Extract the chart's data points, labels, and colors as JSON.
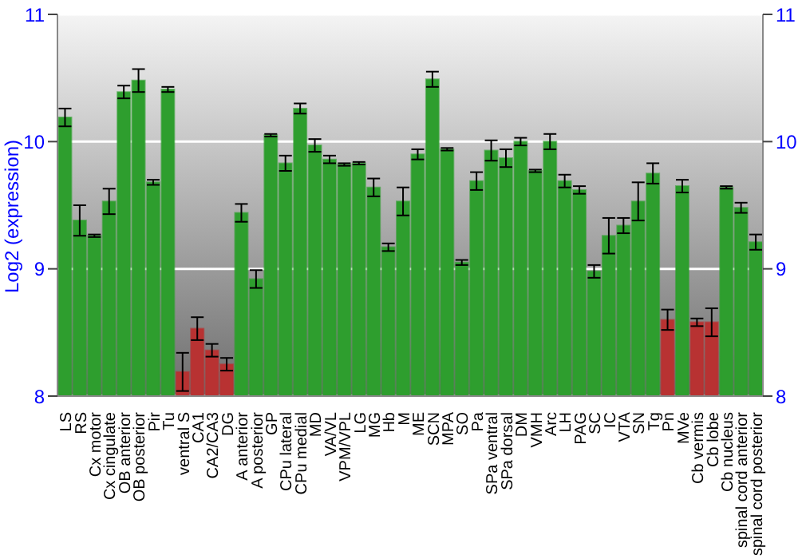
{
  "chart_data": {
    "type": "bar",
    "ylabel": "Log2 (expression)",
    "categories": [
      "LS",
      "RS",
      "Cx motor",
      "Cx cingulate",
      "OB anterior",
      "OB posterior",
      "Pir",
      "Tu",
      "ventral S",
      "CA1",
      "CA2/CA3",
      "DG",
      "A anterior",
      "A posterior",
      "GP",
      "CPu lateral",
      "CPu medial",
      "MD",
      "VA/VL",
      "VPM/VPL",
      "LG",
      "MG",
      "Hb",
      "M",
      "ME",
      "SCN",
      "MPA",
      "SO",
      "Pa",
      "SPa ventral",
      "SPa dorsal",
      "DM",
      "VMH",
      "Arc",
      "LH",
      "PAG",
      "SC",
      "IC",
      "VTA",
      "SN",
      "Tg",
      "Pn",
      "MVe",
      "Cb vermis",
      "Cb lobe",
      "Cb nucleus",
      "spinal cord anterior",
      "spinal cord posterior"
    ],
    "values": [
      10.19,
      9.38,
      9.26,
      9.53,
      10.39,
      10.48,
      9.68,
      10.41,
      8.19,
      8.53,
      8.36,
      8.25,
      9.44,
      8.92,
      10.05,
      9.83,
      10.26,
      9.97,
      9.86,
      9.82,
      9.83,
      9.64,
      9.17,
      9.53,
      9.9,
      10.49,
      9.94,
      9.05,
      9.69,
      9.93,
      9.87,
      10.0,
      9.77,
      10.0,
      9.69,
      9.62,
      8.98,
      9.26,
      9.34,
      9.53,
      9.75,
      8.6,
      9.65,
      8.58,
      8.58,
      9.64,
      9.48,
      9.21
    ],
    "errors": [
      0.07,
      0.12,
      0.01,
      0.1,
      0.05,
      0.09,
      0.02,
      0.02,
      0.15,
      0.09,
      0.05,
      0.05,
      0.07,
      0.07,
      0.01,
      0.06,
      0.04,
      0.05,
      0.03,
      0.01,
      0.01,
      0.07,
      0.03,
      0.11,
      0.04,
      0.06,
      0.01,
      0.02,
      0.07,
      0.08,
      0.07,
      0.03,
      0.01,
      0.06,
      0.05,
      0.03,
      0.05,
      0.14,
      0.06,
      0.15,
      0.08,
      0.08,
      0.05,
      0.03,
      0.11,
      0.01,
      0.04,
      0.06
    ],
    "colors": [
      "#2e9e2e",
      "#2e9e2e",
      "#2e9e2e",
      "#2e9e2e",
      "#2e9e2e",
      "#2e9e2e",
      "#2e9e2e",
      "#2e9e2e",
      "#b83232",
      "#b83232",
      "#b83232",
      "#b83232",
      "#2e9e2e",
      "#2e9e2e",
      "#2e9e2e",
      "#2e9e2e",
      "#2e9e2e",
      "#2e9e2e",
      "#2e9e2e",
      "#2e9e2e",
      "#2e9e2e",
      "#2e9e2e",
      "#2e9e2e",
      "#2e9e2e",
      "#2e9e2e",
      "#2e9e2e",
      "#2e9e2e",
      "#2e9e2e",
      "#2e9e2e",
      "#2e9e2e",
      "#2e9e2e",
      "#2e9e2e",
      "#2e9e2e",
      "#2e9e2e",
      "#2e9e2e",
      "#2e9e2e",
      "#2e9e2e",
      "#2e9e2e",
      "#2e9e2e",
      "#2e9e2e",
      "#2e9e2e",
      "#b83232",
      "#2e9e2e",
      "#b83232",
      "#b83232",
      "#2e9e2e",
      "#2e9e2e",
      "#2e9e2e"
    ],
    "ylim": [
      8,
      11
    ],
    "yticks": [
      8,
      9,
      10,
      11
    ],
    "y2lim": [
      8,
      11
    ],
    "y2ticks": [
      8,
      9,
      10,
      11
    ],
    "grid": "y"
  }
}
